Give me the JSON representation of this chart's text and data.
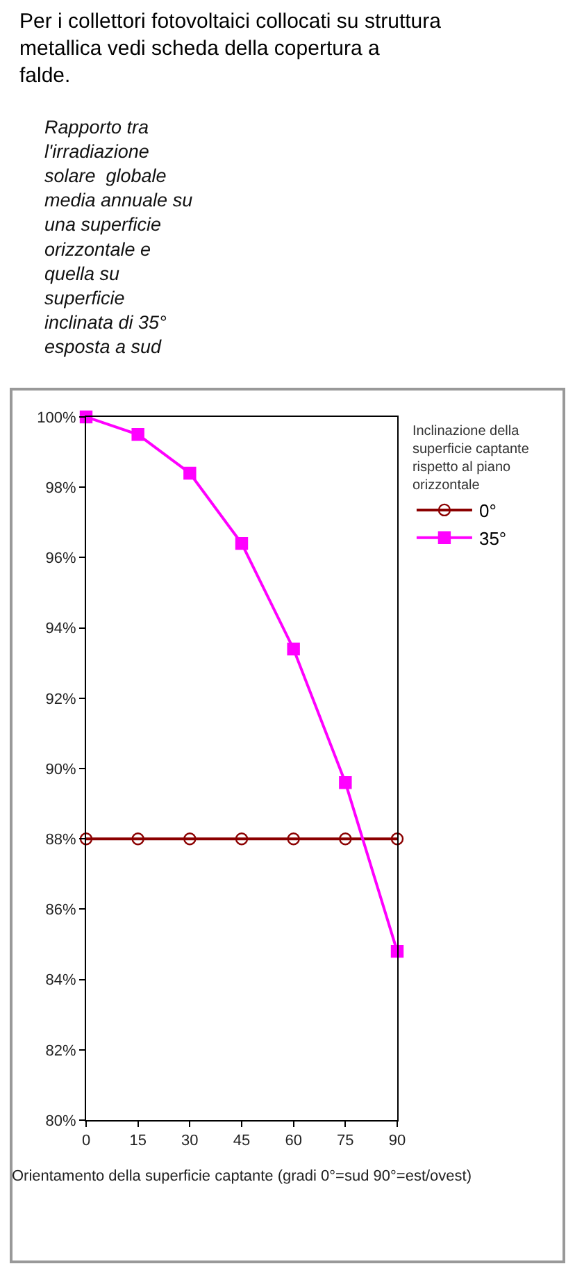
{
  "chart_data": {
    "type": "line",
    "title": "Per i collettori fotovoltaici collocati su struttura metallica vedi scheda della copertura a\nfalde.",
    "annotations": [
      "Rapporto tra\nl'irradiazione\nsolare  globale\nmedia annuale su\nuna superficie\norizzontale e\nquella su\nsuperficie\ninclinata di 35°\nesposta a sud"
    ],
    "xlabel": "Orientamento della superficie captante (gradi 0°=sud 90°=est/ovest)",
    "legend_title": "Inclinazione della\nsuperficie captante\nrispetto al piano\norizzontale",
    "x": [
      0,
      15,
      30,
      45,
      60,
      75,
      90
    ],
    "series": [
      {
        "name": "0°",
        "color": "#8b0000",
        "marker": "circle",
        "values": [
          88,
          88,
          88,
          88,
          88,
          88,
          88
        ]
      },
      {
        "name": "35°",
        "color": "#ff00ff",
        "marker": "square",
        "values": [
          100,
          99.5,
          98.4,
          96.4,
          93.4,
          89.6,
          84.8
        ]
      }
    ],
    "xlim": [
      0,
      90
    ],
    "xticks": [
      0,
      15,
      30,
      45,
      60,
      75,
      90
    ],
    "ylim": [
      80,
      100
    ],
    "yticks": [
      {
        "value": 80,
        "label": "80%"
      },
      {
        "value": 82,
        "label": "82%"
      },
      {
        "value": 84,
        "label": "84%"
      },
      {
        "value": 86,
        "label": "86%"
      },
      {
        "value": 88,
        "label": "88%"
      },
      {
        "value": 90,
        "label": "90%"
      },
      {
        "value": 92,
        "label": "92%"
      },
      {
        "value": 94,
        "label": "94%"
      },
      {
        "value": 96,
        "label": "96%"
      },
      {
        "value": 98,
        "label": "98%"
      },
      {
        "value": 100,
        "label": "100%"
      }
    ],
    "legend": "right",
    "line_style": "solid"
  }
}
